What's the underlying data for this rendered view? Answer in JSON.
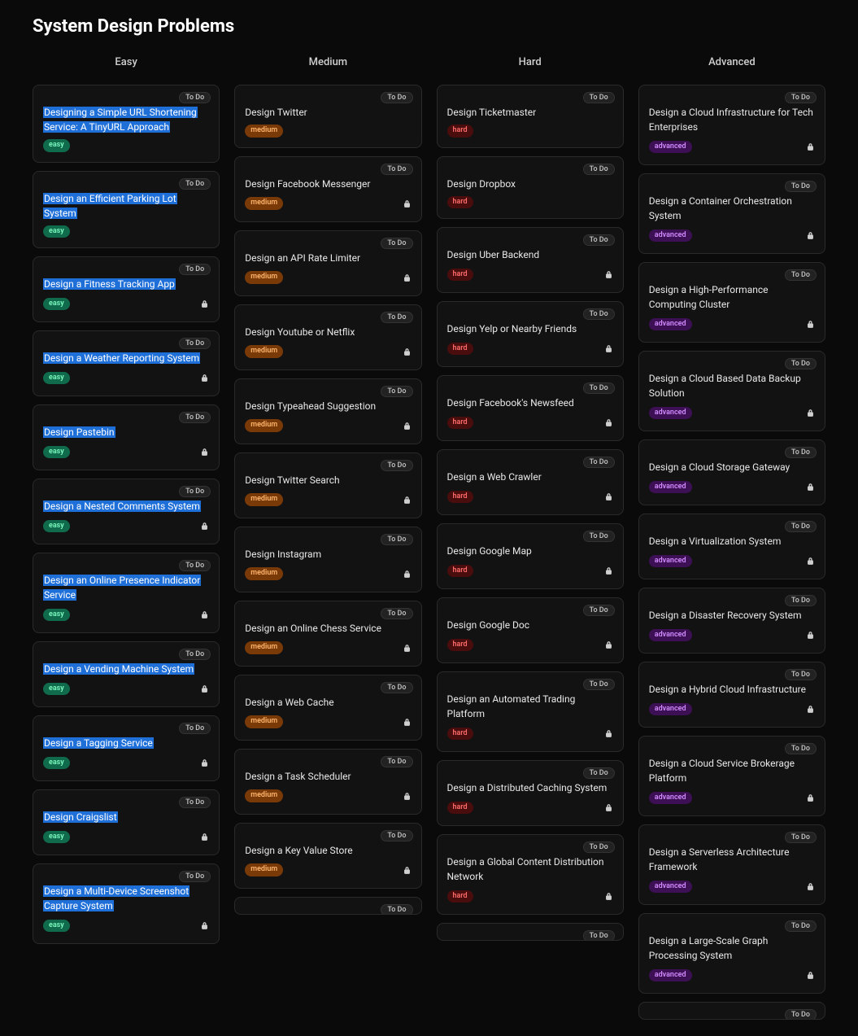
{
  "title": "System Design Problems",
  "status_label": "To Do",
  "diff": {
    "easy": {
      "label": "easy",
      "bg": "#0f6b4c",
      "fg": "#7dfabf"
    },
    "medium": {
      "label": "medium",
      "bg": "#7a3a08",
      "fg": "#ffb56b"
    },
    "hard": {
      "label": "hard",
      "bg": "#4a0d0d",
      "fg": "#ff6b6b"
    },
    "advanced": {
      "label": "advanced",
      "bg": "#3d0f54",
      "fg": "#d18bff"
    }
  },
  "colors": {
    "page_bg": "#0a0a0a",
    "card_bg": "#121212",
    "card_border": "#2a2a2a",
    "highlight_bg": "#1f6fd8",
    "text": "#e8e8e8",
    "pill_bg": "#222222",
    "pill_border": "#333333"
  },
  "columns": [
    {
      "header": "Easy",
      "diff": "easy",
      "cards": [
        {
          "title": "Designing a Simple URL Shortening Service: A TinyURL Approach",
          "highlighted": true,
          "locked": false
        },
        {
          "title": "Design an Efficient Parking Lot System",
          "highlighted": true,
          "locked": false
        },
        {
          "title": "Design a Fitness Tracking App",
          "highlighted": true,
          "locked": true
        },
        {
          "title": "Design a Weather Reporting System",
          "highlighted": true,
          "locked": true
        },
        {
          "title": "Design Pastebin",
          "highlighted": true,
          "locked": true
        },
        {
          "title": "Design a Nested Comments System",
          "highlighted": true,
          "locked": true
        },
        {
          "title": "Design an Online Presence Indicator Service",
          "highlighted": true,
          "locked": true
        },
        {
          "title": "Design a Vending Machine System",
          "highlighted": true,
          "locked": true
        },
        {
          "title": "Design a Tagging Service",
          "highlighted": true,
          "locked": true
        },
        {
          "title": "Design Craigslist",
          "highlighted": true,
          "locked": true
        },
        {
          "title": "Design a Multi-Device Screenshot Capture System",
          "highlighted": true,
          "locked": true
        }
      ],
      "peek": false
    },
    {
      "header": "Medium",
      "diff": "medium",
      "cards": [
        {
          "title": "Design Twitter",
          "highlighted": false,
          "locked": false
        },
        {
          "title": "Design Facebook Messenger",
          "highlighted": false,
          "locked": true
        },
        {
          "title": "Design an API Rate Limiter",
          "highlighted": false,
          "locked": true
        },
        {
          "title": "Design Youtube or Netflix",
          "highlighted": false,
          "locked": true
        },
        {
          "title": "Design Typeahead Suggestion",
          "highlighted": false,
          "locked": true
        },
        {
          "title": "Design Twitter Search",
          "highlighted": false,
          "locked": true
        },
        {
          "title": "Design Instagram",
          "highlighted": false,
          "locked": true
        },
        {
          "title": "Design an Online Chess Service",
          "highlighted": false,
          "locked": true
        },
        {
          "title": "Design a Web Cache",
          "highlighted": false,
          "locked": true
        },
        {
          "title": "Design a Task Scheduler",
          "highlighted": false,
          "locked": true
        },
        {
          "title": "Design a Key Value Store",
          "highlighted": false,
          "locked": true
        }
      ],
      "peek": true
    },
    {
      "header": "Hard",
      "diff": "hard",
      "cards": [
        {
          "title": "Design Ticketmaster",
          "highlighted": false,
          "locked": false
        },
        {
          "title": "Design Dropbox",
          "highlighted": false,
          "locked": false
        },
        {
          "title": "Design Uber Backend",
          "highlighted": false,
          "locked": true
        },
        {
          "title": "Design Yelp or Nearby Friends",
          "highlighted": false,
          "locked": true
        },
        {
          "title": "Design Facebook's Newsfeed",
          "highlighted": false,
          "locked": true
        },
        {
          "title": "Design a Web Crawler",
          "highlighted": false,
          "locked": true
        },
        {
          "title": "Design Google Map",
          "highlighted": false,
          "locked": true
        },
        {
          "title": "Design Google Doc",
          "highlighted": false,
          "locked": true
        },
        {
          "title": "Design an Automated Trading Platform",
          "highlighted": false,
          "locked": true
        },
        {
          "title": "Design a Distributed Caching System",
          "highlighted": false,
          "locked": true
        },
        {
          "title": "Design a Global Content Distribution Network",
          "highlighted": false,
          "locked": true
        }
      ],
      "peek": true
    },
    {
      "header": "Advanced",
      "diff": "advanced",
      "cards": [
        {
          "title": "Design a Cloud Infrastructure for Tech Enterprises",
          "highlighted": false,
          "locked": true
        },
        {
          "title": "Design a Container Orchestration System",
          "highlighted": false,
          "locked": true
        },
        {
          "title": "Design a High-Performance Computing Cluster",
          "highlighted": false,
          "locked": true
        },
        {
          "title": "Design a Cloud Based Data Backup Solution",
          "highlighted": false,
          "locked": true
        },
        {
          "title": "Design a Cloud Storage Gateway",
          "highlighted": false,
          "locked": true
        },
        {
          "title": "Design a Virtualization System",
          "highlighted": false,
          "locked": true
        },
        {
          "title": "Design a Disaster Recovery System",
          "highlighted": false,
          "locked": true
        },
        {
          "title": "Design a Hybrid Cloud Infrastructure",
          "highlighted": false,
          "locked": true
        },
        {
          "title": "Design a Cloud Service Brokerage Platform",
          "highlighted": false,
          "locked": true
        },
        {
          "title": "Design a Serverless Architecture Framework",
          "highlighted": false,
          "locked": true
        },
        {
          "title": "Design a Large-Scale Graph Processing System",
          "highlighted": false,
          "locked": true
        }
      ],
      "peek": true
    }
  ]
}
